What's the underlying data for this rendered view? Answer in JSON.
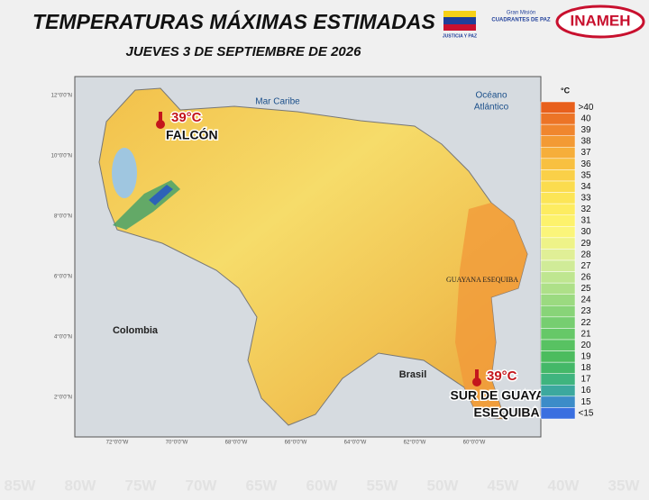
{
  "header": {
    "title": "TEMPERATURAS MÁXIMAS ESTIMADAS",
    "subtitle": "JUEVES 3 DE SEPTIEMBRE DE 2026",
    "logos": [
      "JUSTICIA Y PAZ",
      "Gran Misión",
      "CUADRANTES DE PAZ",
      "INAMEH"
    ]
  },
  "map": {
    "labels": [
      "Mar Caribe",
      "Océano",
      "Atlántico",
      "Colombia",
      "Brasil",
      "GUAYANA ESEQUIBA"
    ],
    "annotations": [
      {
        "value": "39°C",
        "lines": [
          "FALCÓN"
        ]
      },
      {
        "value": "39°C",
        "lines": [
          "SUR DE GUAYANA",
          "ESEQUIBA"
        ]
      }
    ],
    "x_ticks": [
      "72°0'0\"W",
      "70°0'0\"W",
      "68°0'0\"W",
      "66°0'0\"W",
      "64°0'0\"W",
      "62°0'0\"W",
      "60°0'0\"W"
    ],
    "y_ticks": [
      "12°0'0\"N",
      "10°0'0\"N",
      "8°0'0\"N",
      "6°0'0\"N",
      "4°0'0\"N",
      "2°0'0\"N"
    ]
  },
  "legend": {
    "unit": "°C",
    "items": [
      {
        "label": ">40",
        "color": "#e8601c"
      },
      {
        "label": "40",
        "color": "#ec7426"
      },
      {
        "label": "39",
        "color": "#f0862e"
      },
      {
        "label": "38",
        "color": "#f39a34"
      },
      {
        "label": "37",
        "color": "#f6ae3a"
      },
      {
        "label": "36",
        "color": "#f8c040"
      },
      {
        "label": "35",
        "color": "#fad048"
      },
      {
        "label": "34",
        "color": "#fbdc4e"
      },
      {
        "label": "33",
        "color": "#fce556"
      },
      {
        "label": "32",
        "color": "#fdec60"
      },
      {
        "label": "31",
        "color": "#fdf26c"
      },
      {
        "label": "30",
        "color": "#fbf57a"
      },
      {
        "label": "29",
        "color": "#eef388"
      },
      {
        "label": "28",
        "color": "#e0ef96"
      },
      {
        "label": "27",
        "color": "#d0eb98"
      },
      {
        "label": "26",
        "color": "#bfe690"
      },
      {
        "label": "25",
        "color": "#aee088"
      },
      {
        "label": "24",
        "color": "#9bda80"
      },
      {
        "label": "23",
        "color": "#88d478"
      },
      {
        "label": "22",
        "color": "#76ce70"
      },
      {
        "label": "21",
        "color": "#66c868"
      },
      {
        "label": "20",
        "color": "#58c262"
      },
      {
        "label": "19",
        "color": "#4cbc5e"
      },
      {
        "label": "18",
        "color": "#44b868"
      },
      {
        "label": "17",
        "color": "#3fb47e"
      },
      {
        "label": "16",
        "color": "#3ca89e"
      },
      {
        "label": "15",
        "color": "#3c8cc8"
      },
      {
        "label": "<15",
        "color": "#3a6fe0"
      }
    ]
  },
  "background_axis": [
    "85W",
    "80W",
    "75W",
    "70W",
    "65W",
    "60W",
    "55W",
    "50W",
    "45W",
    "40W",
    "35W"
  ]
}
